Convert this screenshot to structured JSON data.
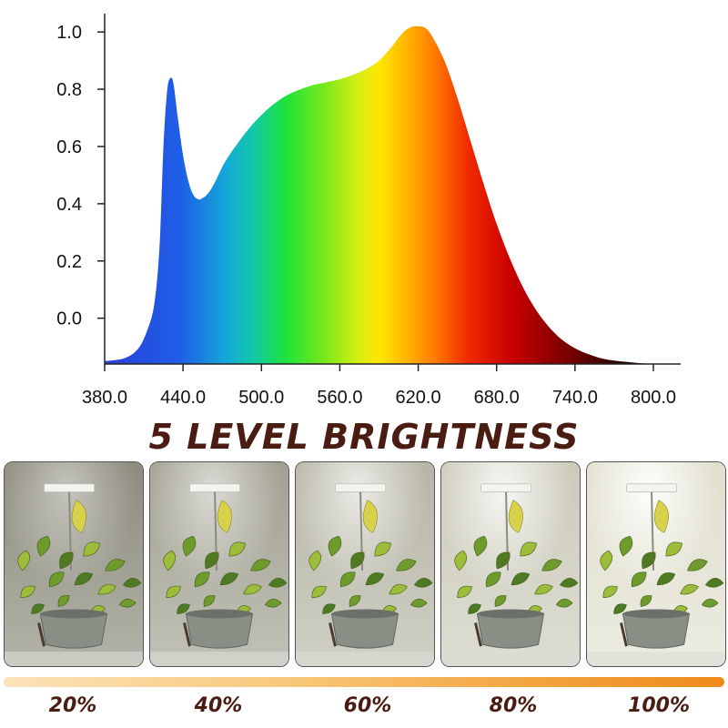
{
  "chart_data": {
    "type": "area",
    "x_ticks": [
      "380.0",
      "440.0",
      "500.0",
      "560.0",
      "620.0",
      "680.0",
      "740.0",
      "800.0"
    ],
    "y_ticks": [
      "0.0",
      "0.2",
      "0.4",
      "0.6",
      "0.8",
      "1.0"
    ],
    "xlim": [
      380,
      800
    ],
    "ylim": [
      -0.16,
      1.08
    ],
    "series": [
      {
        "x": [
          380,
          395,
          405,
          412,
          418,
          422,
          425,
          428,
          431,
          433,
          436,
          440,
          444,
          448,
          452,
          455,
          458,
          462,
          466,
          472,
          480,
          490,
          500,
          510,
          520,
          530,
          540,
          550,
          560,
          570,
          580,
          590,
          600,
          605,
          610,
          615,
          620,
          625,
          630,
          640,
          650,
          660,
          670,
          680,
          690,
          700,
          710,
          720,
          730,
          740,
          750,
          760,
          770,
          780,
          790,
          800
        ],
        "y": [
          -0.15,
          -0.14,
          -0.11,
          -0.05,
          0.05,
          0.25,
          0.6,
          0.8,
          0.84,
          0.81,
          0.7,
          0.57,
          0.48,
          0.43,
          0.415,
          0.42,
          0.43,
          0.455,
          0.49,
          0.545,
          0.6,
          0.66,
          0.71,
          0.75,
          0.78,
          0.8,
          0.815,
          0.825,
          0.835,
          0.85,
          0.87,
          0.9,
          0.95,
          0.98,
          1.005,
          1.018,
          1.02,
          1.015,
          0.99,
          0.9,
          0.77,
          0.62,
          0.47,
          0.33,
          0.21,
          0.11,
          0.03,
          -0.03,
          -0.075,
          -0.105,
          -0.125,
          -0.14,
          -0.148,
          -0.153,
          -0.157,
          -0.16
        ]
      }
    ],
    "grid": false,
    "fill": "visible-spectrum gradient"
  },
  "headline": "5 LEVEL BRIGHTNESS",
  "brightness_levels": [
    {
      "label": "20%",
      "level": 0.2
    },
    {
      "label": "40%",
      "level": 0.4
    },
    {
      "label": "60%",
      "level": 0.6
    },
    {
      "label": "80%",
      "level": 0.8
    },
    {
      "label": "100%",
      "level": 1.0
    }
  ],
  "colors": {
    "headline": "#4a1c12",
    "bar_start": "#fbe3b9",
    "bar_end": "#ee8a1a"
  }
}
